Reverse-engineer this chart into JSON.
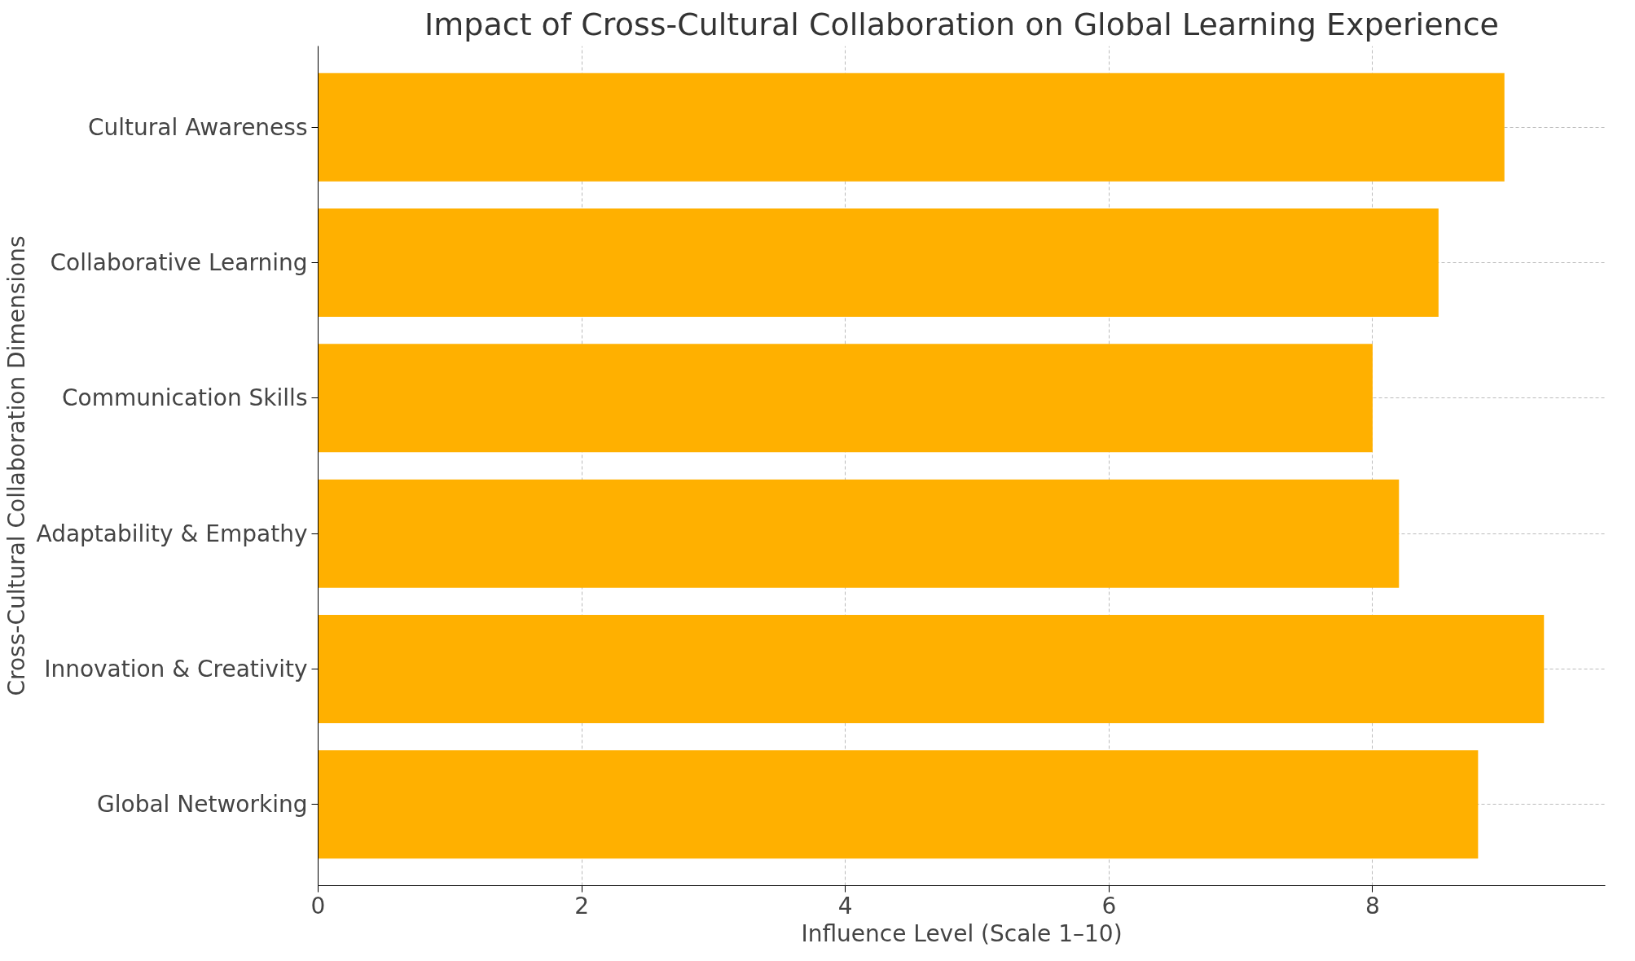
{
  "chart_data": {
    "type": "bar",
    "orientation": "horizontal",
    "title": "Impact of Cross-Cultural Collaboration on Global Learning Experience",
    "xlabel": "Influence Level (Scale 1–10)",
    "ylabel": "Cross-Cultural Collaboration Dimensions",
    "categories": [
      "Cultural Awareness",
      "Collaborative Learning",
      "Communication Skills",
      "Adaptability & Empathy",
      "Innovation & Creativity",
      "Global Networking"
    ],
    "values": [
      9.0,
      8.5,
      8.0,
      8.2,
      9.3,
      8.8
    ],
    "color": "#ffb000",
    "xlim": [
      0,
      9.765
    ],
    "xticks": [
      0,
      2,
      4,
      6,
      8
    ],
    "grid": true
  }
}
